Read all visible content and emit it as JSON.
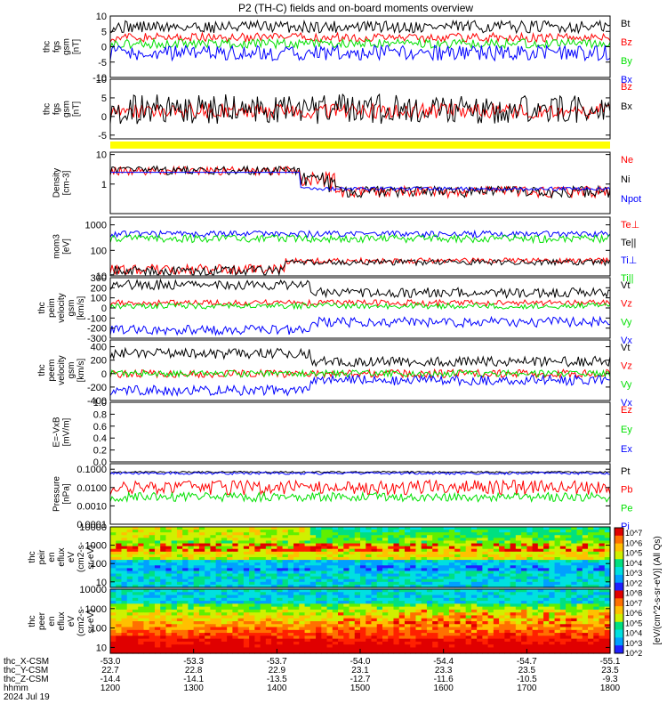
{
  "chart_data": {
    "type": "line",
    "title": "P2 (TH-C) fields and on-board moments overview",
    "colors": {
      "black": "#000000",
      "red": "#ff0000",
      "green": "#00e000",
      "blue": "#0000ff",
      "yellow": "#ffff00"
    },
    "panels": [
      {
        "id": "fgs",
        "ylabel": [
          "thc",
          "fgs",
          "gsm",
          "[nT]"
        ],
        "ylim": [
          -10,
          10
        ],
        "scale": "linear",
        "ticks": [
          "10",
          "5",
          "0",
          "-5",
          "-10"
        ],
        "series": [
          {
            "name": "Bt",
            "color": "black"
          },
          {
            "name": "Bz",
            "color": "red"
          },
          {
            "name": "By",
            "color": "green"
          },
          {
            "name": "Bx",
            "color": "blue"
          }
        ],
        "legend": [
          "Bt",
          "Bz",
          "By",
          "Bx"
        ]
      },
      {
        "id": "fgs2",
        "ylabel": [
          "thc",
          "fgs",
          "gsm",
          "[nT]"
        ],
        "ylim": [
          -6,
          10
        ],
        "scale": "linear",
        "ticks": [
          "10",
          "5",
          "0",
          "-5"
        ],
        "series": [
          {
            "name": "Bz",
            "color": "red"
          },
          {
            "name": "Bx",
            "color": "black"
          }
        ],
        "legend": [
          "Bz",
          "Bx"
        ]
      },
      {
        "id": "density",
        "ylabel": [
          "Density",
          "[cm-3]"
        ],
        "ylim": [
          0.1,
          12
        ],
        "scale": "log",
        "ticks": [
          "10",
          "1"
        ],
        "series": [
          {
            "name": "Ne",
            "color": "red"
          },
          {
            "name": "Ni",
            "color": "black"
          },
          {
            "name": "Npot",
            "color": "blue"
          }
        ],
        "legend": [
          "Ne",
          "Ni",
          "Npot"
        ]
      },
      {
        "id": "temp",
        "ylabel": [
          "mom3",
          "[eV]"
        ],
        "ylim": [
          10,
          2000
        ],
        "scale": "log",
        "ticks": [
          "1000",
          "100",
          "10"
        ],
        "series": [
          {
            "name": "Te⊥",
            "color": "red"
          },
          {
            "name": "Te||",
            "color": "black"
          },
          {
            "name": "Ti⊥",
            "color": "blue"
          },
          {
            "name": "Ti||",
            "color": "green"
          }
        ],
        "legend": [
          "Te⊥",
          "Te||",
          "Ti⊥",
          "Ti||"
        ]
      },
      {
        "id": "peim",
        "ylabel": [
          "thc",
          "peim",
          "velocity",
          "gsm",
          "[km/s]"
        ],
        "ylim": [
          -300,
          300
        ],
        "scale": "linear",
        "ticks": [
          "300",
          "200",
          "100",
          "0",
          "-100",
          "-200",
          "-300"
        ],
        "series": [
          {
            "name": "Vt",
            "color": "black"
          },
          {
            "name": "Vz",
            "color": "red"
          },
          {
            "name": "Vy",
            "color": "green"
          },
          {
            "name": "Vx",
            "color": "blue"
          }
        ],
        "legend": [
          "Vt",
          "Vz",
          "Vy",
          "Vx"
        ]
      },
      {
        "id": "peem",
        "ylabel": [
          "thc",
          "peem",
          "velocity",
          "gsm",
          "[km/s]"
        ],
        "ylim": [
          -400,
          500
        ],
        "scale": "linear",
        "ticks": [
          "400",
          "200",
          "0",
          "-200",
          "-400"
        ],
        "series": [
          {
            "name": "Vt",
            "color": "black"
          },
          {
            "name": "Vz",
            "color": "red"
          },
          {
            "name": "Vy",
            "color": "green"
          },
          {
            "name": "Vx",
            "color": "blue"
          }
        ],
        "legend": [
          "Vt",
          "Vz",
          "Vy",
          "Vx"
        ]
      },
      {
        "id": "efield",
        "ylabel": [
          "E=-VxB",
          "[mV/m]"
        ],
        "ylim": [
          0,
          1
        ],
        "scale": "linear",
        "ticks": [
          "1.0",
          "0.8",
          "0.6",
          "0.4",
          "0.2",
          "0.0"
        ],
        "series": [],
        "legend": [
          "Ez",
          "Ey",
          "Ex"
        ]
      },
      {
        "id": "pressure",
        "ylabel": [
          "Pressure",
          "[nPa]"
        ],
        "ylim": [
          0.0001,
          0.2
        ],
        "scale": "log",
        "ticks": [
          "0.1000",
          "0.0100",
          "0.0010",
          "0.0001"
        ],
        "series": [
          {
            "name": "Pt",
            "color": "black"
          },
          {
            "name": "Pb",
            "color": "red"
          },
          {
            "name": "Pe",
            "color": "green"
          },
          {
            "name": "Pi",
            "color": "blue"
          }
        ],
        "legend": [
          "Pt",
          "Pb",
          "Pe",
          "Pi"
        ]
      },
      {
        "id": "peir",
        "ylabel": [
          "thc",
          "peir",
          "en",
          "eflux",
          "eV",
          "(cm2-s-",
          "sr-eV)"
        ],
        "ylim": [
          5,
          10000
        ],
        "scale": "log",
        "ticks": [
          "10000",
          "1000",
          "100",
          "10"
        ]
      },
      {
        "id": "peer",
        "ylabel": [
          "thc",
          "peer",
          "en",
          "eflux",
          "eV",
          "(cm2-s-",
          "sr-eV)"
        ],
        "ylim": [
          5,
          10000
        ],
        "scale": "log",
        "ticks": [
          "10000",
          "1000",
          "100",
          "10"
        ]
      }
    ],
    "colorbar": {
      "label": "[eV/(cm^2-s-sr-eV)] (All Qs)",
      "ticks": [
        "10^7",
        "10^6",
        "10^5",
        "10^4",
        "10^3",
        "10^2",
        "10^8",
        "10^7",
        "10^6",
        "10^5",
        "10^4",
        "10^3",
        "10^2"
      ]
    },
    "x_axis": {
      "rows": [
        {
          "label": "thc_X-CSM",
          "values": [
            "-53.0",
            "-53.3",
            "-53.7",
            "-54.0",
            "-54.4",
            "-54.7",
            "-55.1"
          ]
        },
        {
          "label": "thc_Y-CSM",
          "values": [
            "22.7",
            "22.8",
            "22.9",
            "23.1",
            "23.3",
            "23.5",
            "23.5"
          ]
        },
        {
          "label": "thc_Z-CSM",
          "values": [
            "-14.4",
            "-14.1",
            "-13.5",
            "-12.7",
            "-11.6",
            "-10.5",
            "-9.3"
          ]
        },
        {
          "label": "hhmm",
          "values": [
            "1200",
            "1300",
            "1400",
            "1500",
            "1600",
            "1700",
            "1800"
          ]
        }
      ],
      "date": "2024 Jul 19"
    }
  }
}
